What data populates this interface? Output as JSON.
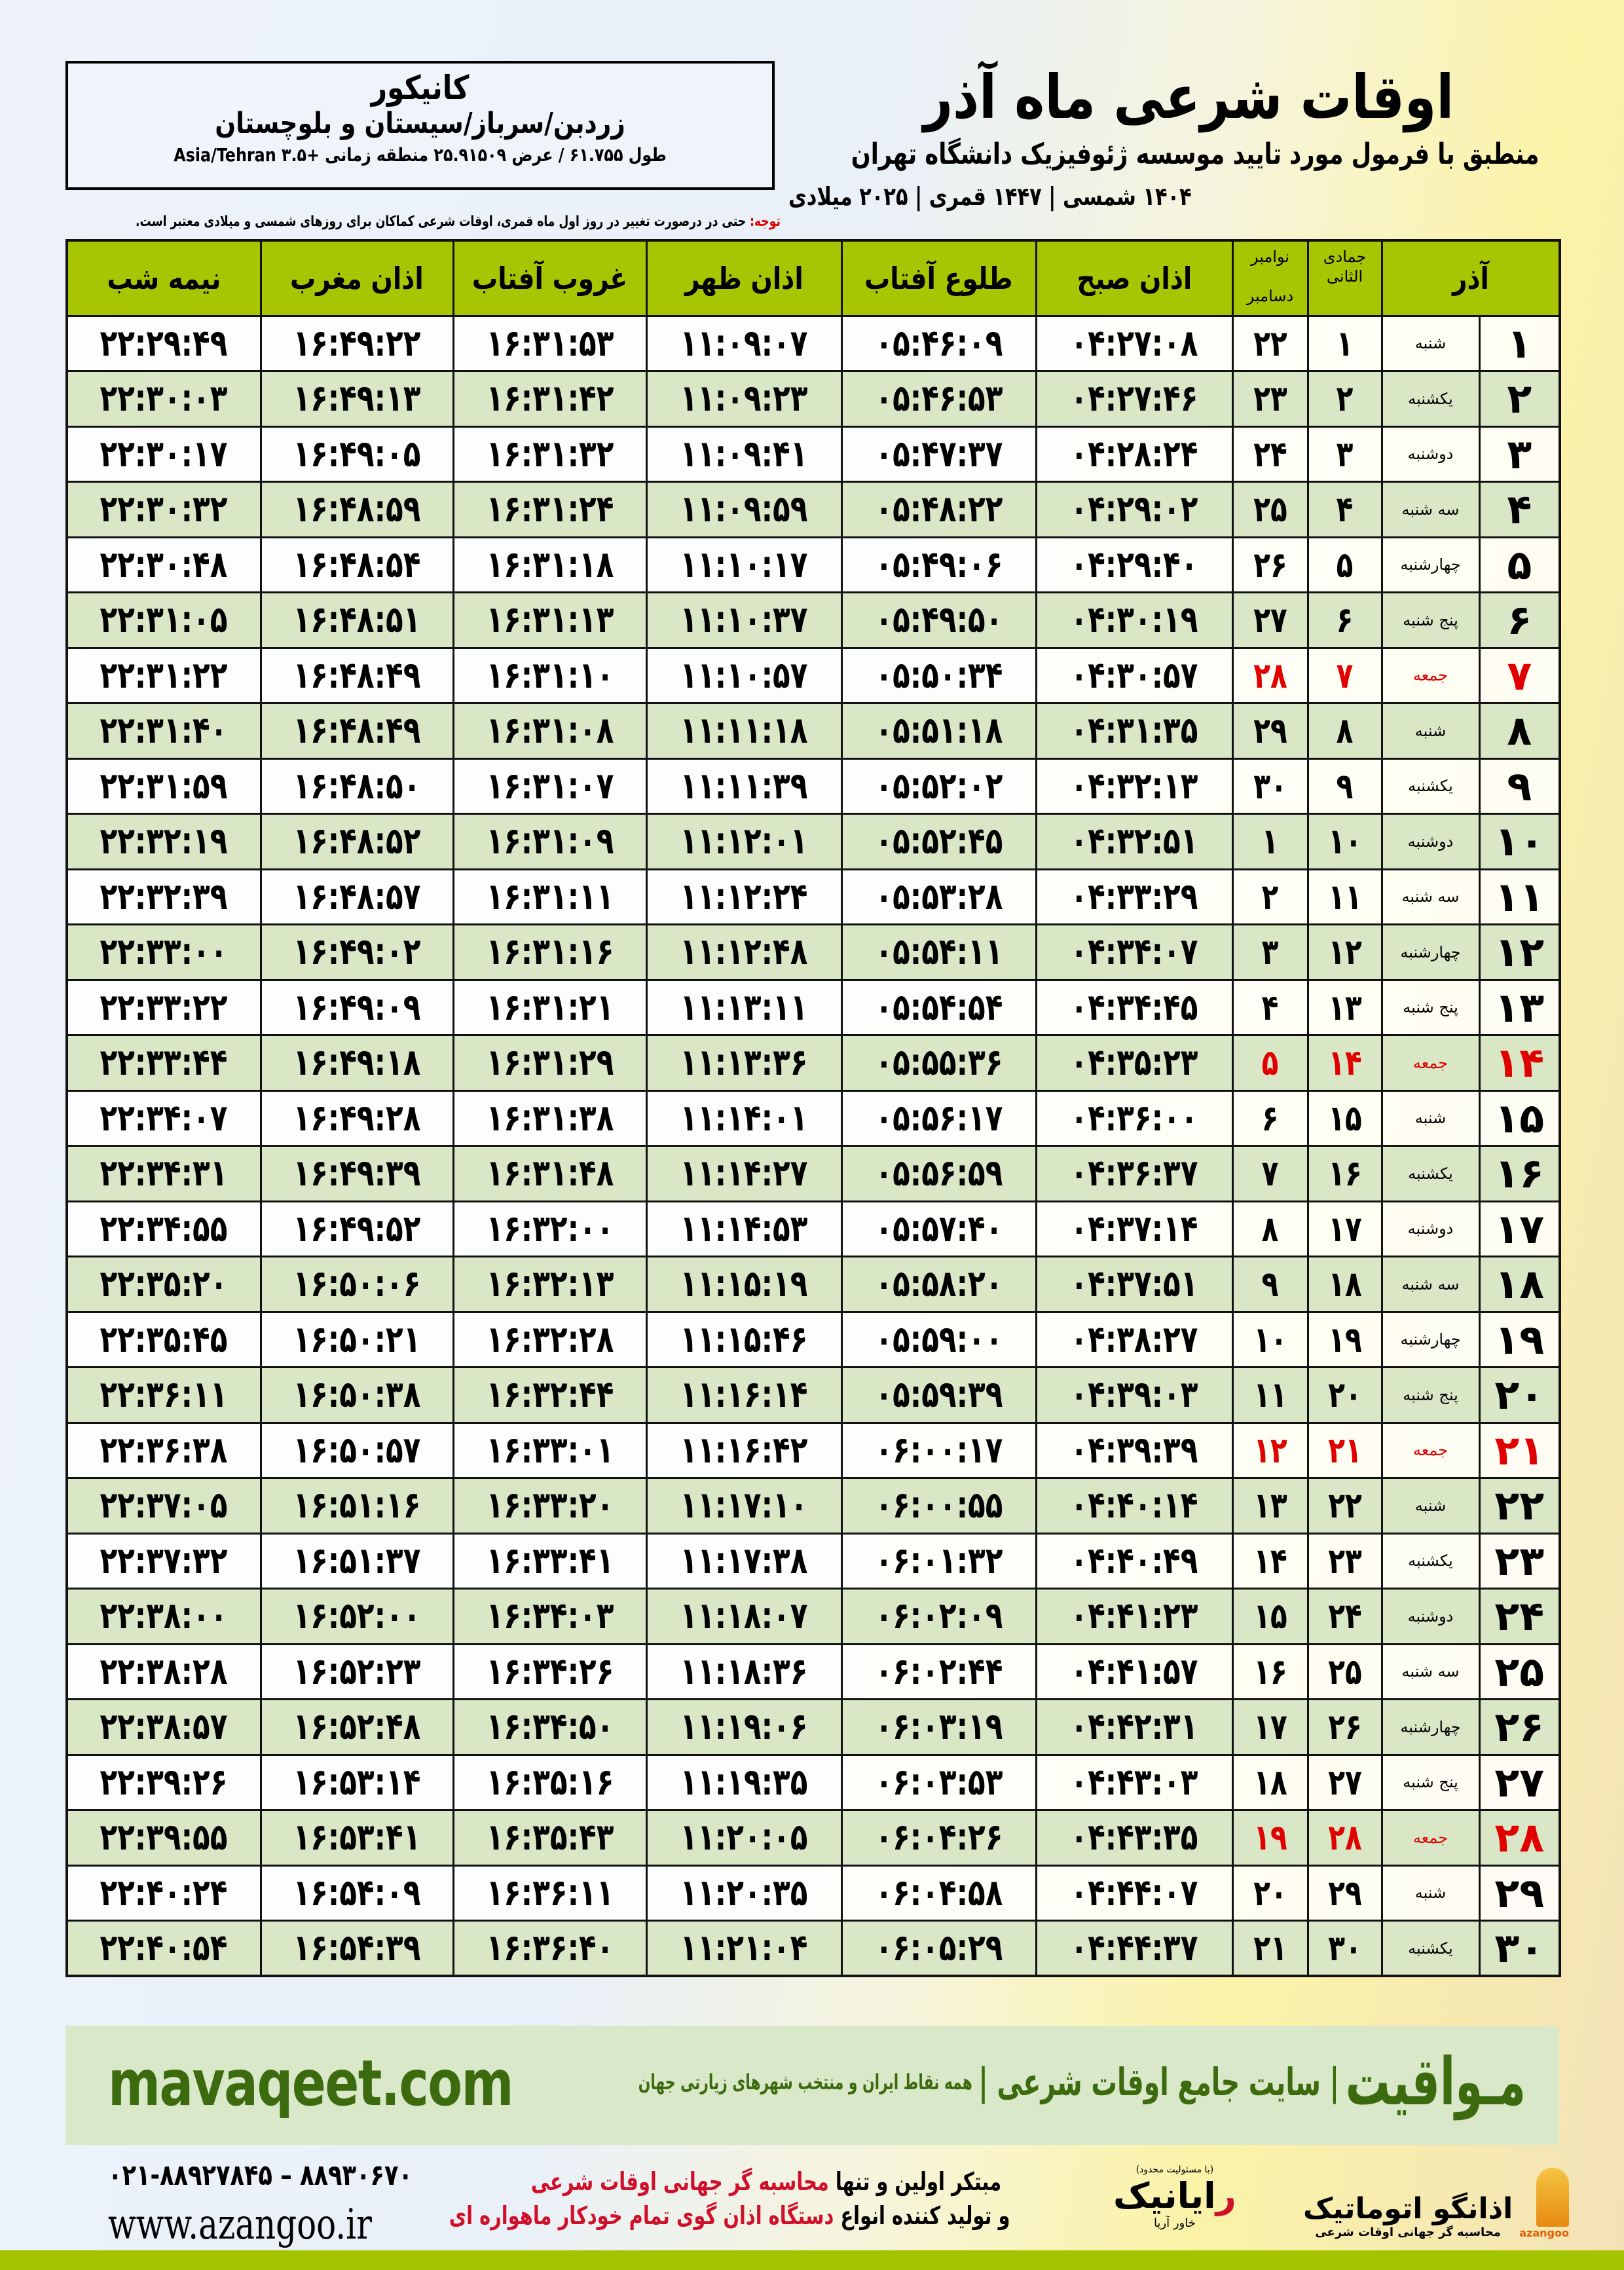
{
  "info": {
    "city": "کانیکور",
    "region": "زردبن/سرباز/سیستان و بلوچستان",
    "coords": "طول ۶۱.۷۵۵ / عرض ۲۵.۹۱۵۰۹ منطقه زمانی +۳.۵ Asia/Tehran"
  },
  "header": {
    "title": "اوقات شرعی ماه آذر",
    "subtitle": "منطبق با فرمول مورد تایید موسسه ژئوفیزیک دانشگاه تهران",
    "dates": "۱۴۰۴ شمسی | ۱۴۴۷ قمری | ۲۰۲۵ میلادی"
  },
  "note": {
    "label": "توجه:",
    "text": " حتی در درصورت تغییر در روز اول ماه قمری، اوقات شرعی کماکان برای روزهای شمسی و میلادی معتبر است."
  },
  "table": {
    "columns": {
      "month": "آذر",
      "hijri": "جمادی الثانی",
      "greg_top": "نوامبر",
      "greg_bottom": "دسامبر",
      "fajr": "اذان صبح",
      "sunrise": "طلوع آفتاب",
      "dhuhr": "اذان ظهر",
      "sunset": "غروب آفتاب",
      "maghrib": "اذان مغرب",
      "midnight": "نیمه شب"
    },
    "rows": [
      [
        "۱",
        "شنبه",
        "۱",
        "۲۲",
        "۰۴:۲۷:۰۸",
        "۰۵:۴۶:۰۹",
        "۱۱:۰۹:۰۷",
        "۱۶:۳۱:۵۳",
        "۱۶:۴۹:۲۲",
        "۲۲:۲۹:۴۹"
      ],
      [
        "۲",
        "یکشنبه",
        "۲",
        "۲۳",
        "۰۴:۲۷:۴۶",
        "۰۵:۴۶:۵۳",
        "۱۱:۰۹:۲۳",
        "۱۶:۳۱:۴۲",
        "۱۶:۴۹:۱۳",
        "۲۲:۳۰:۰۳"
      ],
      [
        "۳",
        "دوشنبه",
        "۳",
        "۲۴",
        "۰۴:۲۸:۲۴",
        "۰۵:۴۷:۳۷",
        "۱۱:۰۹:۴۱",
        "۱۶:۳۱:۳۲",
        "۱۶:۴۹:۰۵",
        "۲۲:۳۰:۱۷"
      ],
      [
        "۴",
        "سه شنبه",
        "۴",
        "۲۵",
        "۰۴:۲۹:۰۲",
        "۰۵:۴۸:۲۲",
        "۱۱:۰۹:۵۹",
        "۱۶:۳۱:۲۴",
        "۱۶:۴۸:۵۹",
        "۲۲:۳۰:۳۲"
      ],
      [
        "۵",
        "چهارشنبه",
        "۵",
        "۲۶",
        "۰۴:۲۹:۴۰",
        "۰۵:۴۹:۰۶",
        "۱۱:۱۰:۱۷",
        "۱۶:۳۱:۱۸",
        "۱۶:۴۸:۵۴",
        "۲۲:۳۰:۴۸"
      ],
      [
        "۶",
        "پنج شنبه",
        "۶",
        "۲۷",
        "۰۴:۳۰:۱۹",
        "۰۵:۴۹:۵۰",
        "۱۱:۱۰:۳۷",
        "۱۶:۳۱:۱۳",
        "۱۶:۴۸:۵۱",
        "۲۲:۳۱:۰۵"
      ],
      [
        "۷",
        "جمعه",
        "۷",
        "۲۸",
        "۰۴:۳۰:۵۷",
        "۰۵:۵۰:۳۴",
        "۱۱:۱۰:۵۷",
        "۱۶:۳۱:۱۰",
        "۱۶:۴۸:۴۹",
        "۲۲:۳۱:۲۲"
      ],
      [
        "۸",
        "شنبه",
        "۸",
        "۲۹",
        "۰۴:۳۱:۳۵",
        "۰۵:۵۱:۱۸",
        "۱۱:۱۱:۱۸",
        "۱۶:۳۱:۰۸",
        "۱۶:۴۸:۴۹",
        "۲۲:۳۱:۴۰"
      ],
      [
        "۹",
        "یکشنبه",
        "۹",
        "۳۰",
        "۰۴:۳۲:۱۳",
        "۰۵:۵۲:۰۲",
        "۱۱:۱۱:۳۹",
        "۱۶:۳۱:۰۷",
        "۱۶:۴۸:۵۰",
        "۲۲:۳۱:۵۹"
      ],
      [
        "۱۰",
        "دوشنبه",
        "۱۰",
        "۱",
        "۰۴:۳۲:۵۱",
        "۰۵:۵۲:۴۵",
        "۱۱:۱۲:۰۱",
        "۱۶:۳۱:۰۹",
        "۱۶:۴۸:۵۲",
        "۲۲:۳۲:۱۹"
      ],
      [
        "۱۱",
        "سه شنبه",
        "۱۱",
        "۲",
        "۰۴:۳۳:۲۹",
        "۰۵:۵۳:۲۸",
        "۱۱:۱۲:۲۴",
        "۱۶:۳۱:۱۱",
        "۱۶:۴۸:۵۷",
        "۲۲:۳۲:۳۹"
      ],
      [
        "۱۲",
        "چهارشنبه",
        "۱۲",
        "۳",
        "۰۴:۳۴:۰۷",
        "۰۵:۵۴:۱۱",
        "۱۱:۱۲:۴۸",
        "۱۶:۳۱:۱۶",
        "۱۶:۴۹:۰۲",
        "۲۲:۳۳:۰۰"
      ],
      [
        "۱۳",
        "پنج شنبه",
        "۱۳",
        "۴",
        "۰۴:۳۴:۴۵",
        "۰۵:۵۴:۵۴",
        "۱۱:۱۳:۱۱",
        "۱۶:۳۱:۲۱",
        "۱۶:۴۹:۰۹",
        "۲۲:۳۳:۲۲"
      ],
      [
        "۱۴",
        "جمعه",
        "۱۴",
        "۵",
        "۰۴:۳۵:۲۳",
        "۰۵:۵۵:۳۶",
        "۱۱:۱۳:۳۶",
        "۱۶:۳۱:۲۹",
        "۱۶:۴۹:۱۸",
        "۲۲:۳۳:۴۴"
      ],
      [
        "۱۵",
        "شنبه",
        "۱۵",
        "۶",
        "۰۴:۳۶:۰۰",
        "۰۵:۵۶:۱۷",
        "۱۱:۱۴:۰۱",
        "۱۶:۳۱:۳۸",
        "۱۶:۴۹:۲۸",
        "۲۲:۳۴:۰۷"
      ],
      [
        "۱۶",
        "یکشنبه",
        "۱۶",
        "۷",
        "۰۴:۳۶:۳۷",
        "۰۵:۵۶:۵۹",
        "۱۱:۱۴:۲۷",
        "۱۶:۳۱:۴۸",
        "۱۶:۴۹:۳۹",
        "۲۲:۳۴:۳۱"
      ],
      [
        "۱۷",
        "دوشنبه",
        "۱۷",
        "۸",
        "۰۴:۳۷:۱۴",
        "۰۵:۵۷:۴۰",
        "۱۱:۱۴:۵۳",
        "۱۶:۳۲:۰۰",
        "۱۶:۴۹:۵۲",
        "۲۲:۳۴:۵۵"
      ],
      [
        "۱۸",
        "سه شنبه",
        "۱۸",
        "۹",
        "۰۴:۳۷:۵۱",
        "۰۵:۵۸:۲۰",
        "۱۱:۱۵:۱۹",
        "۱۶:۳۲:۱۳",
        "۱۶:۵۰:۰۶",
        "۲۲:۳۵:۲۰"
      ],
      [
        "۱۹",
        "چهارشنبه",
        "۱۹",
        "۱۰",
        "۰۴:۳۸:۲۷",
        "۰۵:۵۹:۰۰",
        "۱۱:۱۵:۴۶",
        "۱۶:۳۲:۲۸",
        "۱۶:۵۰:۲۱",
        "۲۲:۳۵:۴۵"
      ],
      [
        "۲۰",
        "پنج شنبه",
        "۲۰",
        "۱۱",
        "۰۴:۳۹:۰۳",
        "۰۵:۵۹:۳۹",
        "۱۱:۱۶:۱۴",
        "۱۶:۳۲:۴۴",
        "۱۶:۵۰:۳۸",
        "۲۲:۳۶:۱۱"
      ],
      [
        "۲۱",
        "جمعه",
        "۲۱",
        "۱۲",
        "۰۴:۳۹:۳۹",
        "۰۶:۰۰:۱۷",
        "۱۱:۱۶:۴۲",
        "۱۶:۳۳:۰۱",
        "۱۶:۵۰:۵۷",
        "۲۲:۳۶:۳۸"
      ],
      [
        "۲۲",
        "شنبه",
        "۲۲",
        "۱۳",
        "۰۴:۴۰:۱۴",
        "۰۶:۰۰:۵۵",
        "۱۱:۱۷:۱۰",
        "۱۶:۳۳:۲۰",
        "۱۶:۵۱:۱۶",
        "۲۲:۳۷:۰۵"
      ],
      [
        "۲۳",
        "یکشنبه",
        "۲۳",
        "۱۴",
        "۰۴:۴۰:۴۹",
        "۰۶:۰۱:۳۲",
        "۱۱:۱۷:۳۸",
        "۱۶:۳۳:۴۱",
        "۱۶:۵۱:۳۷",
        "۲۲:۳۷:۳۲"
      ],
      [
        "۲۴",
        "دوشنبه",
        "۲۴",
        "۱۵",
        "۰۴:۴۱:۲۳",
        "۰۶:۰۲:۰۹",
        "۱۱:۱۸:۰۷",
        "۱۶:۳۴:۰۳",
        "۱۶:۵۲:۰۰",
        "۲۲:۳۸:۰۰"
      ],
      [
        "۲۵",
        "سه شنبه",
        "۲۵",
        "۱۶",
        "۰۴:۴۱:۵۷",
        "۰۶:۰۲:۴۴",
        "۱۱:۱۸:۳۶",
        "۱۶:۳۴:۲۶",
        "۱۶:۵۲:۲۳",
        "۲۲:۳۸:۲۸"
      ],
      [
        "۲۶",
        "چهارشنبه",
        "۲۶",
        "۱۷",
        "۰۴:۴۲:۳۱",
        "۰۶:۰۳:۱۹",
        "۱۱:۱۹:۰۶",
        "۱۶:۳۴:۵۰",
        "۱۶:۵۲:۴۸",
        "۲۲:۳۸:۵۷"
      ],
      [
        "۲۷",
        "پنج شنبه",
        "۲۷",
        "۱۸",
        "۰۴:۴۳:۰۳",
        "۰۶:۰۳:۵۳",
        "۱۱:۱۹:۳۵",
        "۱۶:۳۵:۱۶",
        "۱۶:۵۳:۱۴",
        "۲۲:۳۹:۲۶"
      ],
      [
        "۲۸",
        "جمعه",
        "۲۸",
        "۱۹",
        "۰۴:۴۳:۳۵",
        "۰۶:۰۴:۲۶",
        "۱۱:۲۰:۰۵",
        "۱۶:۳۵:۴۳",
        "۱۶:۵۳:۴۱",
        "۲۲:۳۹:۵۵"
      ],
      [
        "۲۹",
        "شنبه",
        "۲۹",
        "۲۰",
        "۰۴:۴۴:۰۷",
        "۰۶:۰۴:۵۸",
        "۱۱:۲۰:۳۵",
        "۱۶:۳۶:۱۱",
        "۱۶:۵۴:۰۹",
        "۲۲:۴۰:۲۴"
      ],
      [
        "۳۰",
        "یکشنبه",
        "۳۰",
        "۲۱",
        "۰۴:۴۴:۳۷",
        "۰۶:۰۵:۲۹",
        "۱۱:۲۱:۰۴",
        "۱۶:۳۶:۴۰",
        "۱۶:۵۴:۳۹",
        "۲۲:۴۰:۵۴"
      ]
    ],
    "holiday_weekday": "جمعه",
    "colors": {
      "header": "#a7c500",
      "even_row": "#d9e7c6",
      "holiday": "#e00000"
    }
  },
  "footer": {
    "site": "mavaqeet.com",
    "brand": "مـواقیت",
    "brand_tag": "| سایت جامع اوقات شرعی |",
    "brand_desc": "همه نقاط ایران و منتخب شهرهای زیارتی جهان",
    "phone": "۰۲۱-۸۸۹۲۷۸۴۵ – ۸۸۹۳۰۶۷۰",
    "web": "www.azangoo.ir",
    "promo1_a": "مبتکر اولین و تنها ",
    "promo1_b": "محاسبه گر جهانی اوقات شرعی",
    "promo2_a": "و تولید کننده انواع ",
    "promo2_b": "دستگاه اذان گوی تمام خودکار ماهواره ای",
    "logo1_small": "(با مسئولیت محدود)",
    "logo1_name_a": "ر",
    "logo1_name_b": "ایانیک",
    "logo1_sub": "خاور آریا",
    "logo2_name": "اذانگو اتوماتیک",
    "logo2_sub": "محاسبه گر جهانی اوقات شرعی",
    "logo2_latin": "azangoo",
    "accent": "#3c6a0e",
    "bar": "#a4c400"
  }
}
